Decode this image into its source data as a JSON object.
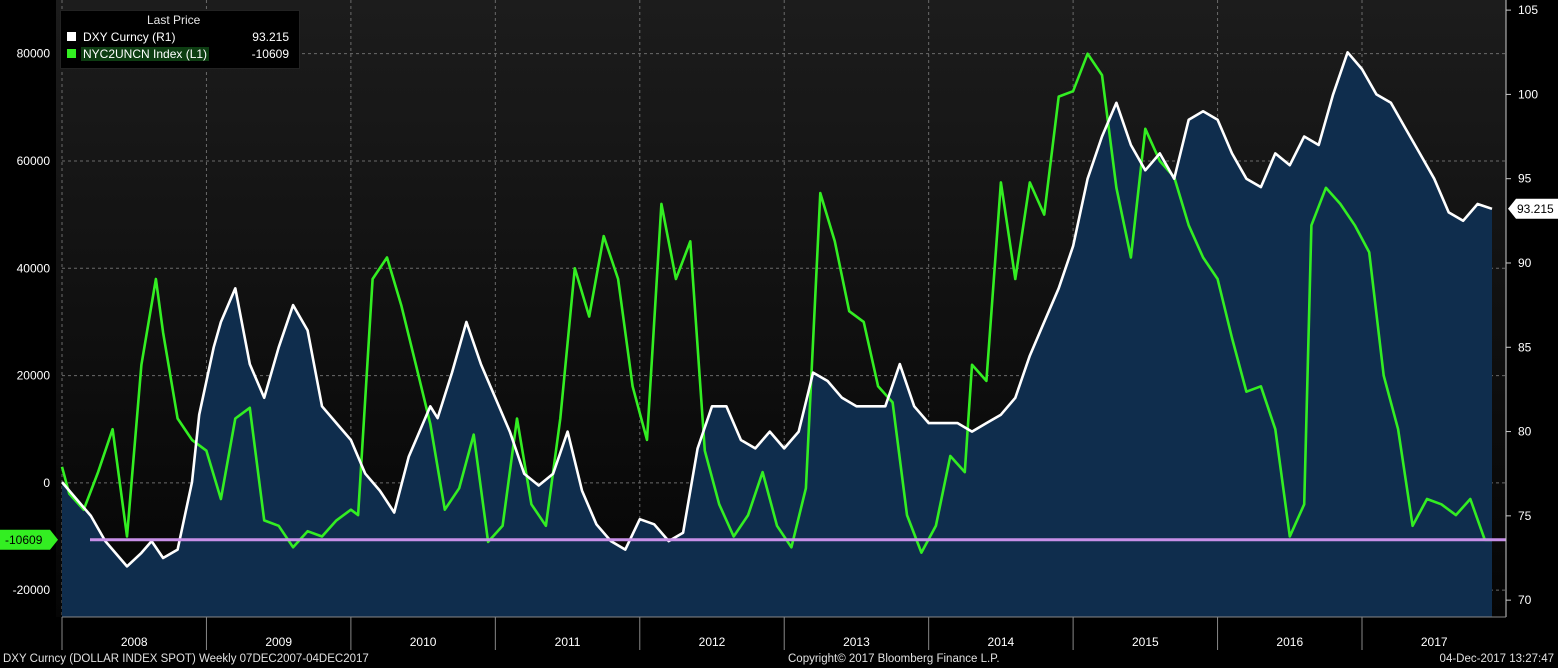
{
  "legend": {
    "title": "Last Price",
    "items": [
      {
        "name": "DXY Curncy  (R1)",
        "value": "93.215",
        "color": "#ffffff"
      },
      {
        "name": "NYC2UNCN Index  (L1)",
        "value": "-10609",
        "color": "#33ee22"
      }
    ]
  },
  "footer": {
    "left": "DXY Curncy (DOLLAR INDEX SPOT)  Weekly 07DEC2007-04DEC2017",
    "center": "Copyright© 2017 Bloomberg Finance L.P.",
    "right": "04-Dec-2017 13:27:47"
  },
  "colors": {
    "background": "#000000",
    "plot_top": "#1e1e1e",
    "area_fill": "#0f2d4d",
    "dxy": "#ffffff",
    "nyc": "#33ee22",
    "hline": "#c890e8",
    "nyc_label_bg": "#33ee22"
  },
  "chart_data": {
    "type": "line",
    "x_unit": "year",
    "xlim": [
      2008.0,
      2017.9
    ],
    "x_tick_labels": [
      "2008",
      "2009",
      "2010",
      "2011",
      "2012",
      "2013",
      "2014",
      "2015",
      "2016",
      "2017"
    ],
    "left_axis": {
      "ylim": [
        -25000,
        90000
      ],
      "ticks": [
        -20000,
        0,
        20000,
        40000,
        60000,
        80000
      ],
      "tick_labels": [
        "-20000",
        "0",
        "20000",
        "40000",
        "60000",
        "80000"
      ]
    },
    "right_axis": {
      "ylim": [
        69,
        105.6
      ],
      "ticks": [
        70,
        75,
        80,
        85,
        90,
        95,
        100,
        105
      ],
      "tick_labels": [
        "70",
        "75",
        "80",
        "85",
        "90",
        "95",
        "100",
        "105"
      ]
    },
    "last_values": {
      "dxy": "93.215",
      "nyc": "-10609"
    },
    "hline_value": -10609,
    "series": [
      {
        "name": "DXY Curncy  (R1)",
        "axis": "right",
        "fill": true,
        "x": [
          2008.0,
          2008.1,
          2008.2,
          2008.3,
          2008.45,
          2008.55,
          2008.62,
          2008.7,
          2008.8,
          2008.9,
          2008.95,
          2009.05,
          2009.1,
          2009.2,
          2009.3,
          2009.4,
          2009.5,
          2009.6,
          2009.7,
          2009.8,
          2009.9,
          2010.0,
          2010.1,
          2010.2,
          2010.3,
          2010.4,
          2010.45,
          2010.55,
          2010.6,
          2010.7,
          2010.8,
          2010.9,
          2011.0,
          2011.1,
          2011.2,
          2011.3,
          2011.4,
          2011.5,
          2011.6,
          2011.7,
          2011.8,
          2011.9,
          2012.0,
          2012.1,
          2012.2,
          2012.3,
          2012.4,
          2012.5,
          2012.6,
          2012.7,
          2012.8,
          2012.9,
          2013.0,
          2013.1,
          2013.2,
          2013.3,
          2013.4,
          2013.5,
          2013.6,
          2013.7,
          2013.8,
          2013.9,
          2014.0,
          2014.1,
          2014.2,
          2014.3,
          2014.4,
          2014.5,
          2014.6,
          2014.7,
          2014.8,
          2014.9,
          2015.0,
          2015.1,
          2015.2,
          2015.3,
          2015.4,
          2015.5,
          2015.6,
          2015.7,
          2015.8,
          2015.9,
          2016.0,
          2016.1,
          2016.2,
          2016.3,
          2016.4,
          2016.5,
          2016.6,
          2016.7,
          2016.8,
          2016.9,
          2017.0,
          2017.1,
          2017.2,
          2017.3,
          2017.4,
          2017.5,
          2017.6,
          2017.7,
          2017.8,
          2017.9
        ],
        "values": [
          77.0,
          76.0,
          75.0,
          73.5,
          72.0,
          72.8,
          73.5,
          72.5,
          73.0,
          77.0,
          81.0,
          85.0,
          86.5,
          88.5,
          84.0,
          82.0,
          85.0,
          87.5,
          86.0,
          81.5,
          80.5,
          79.5,
          77.5,
          76.5,
          75.2,
          78.5,
          79.5,
          81.5,
          80.8,
          83.5,
          86.5,
          84.0,
          82.0,
          80.0,
          77.5,
          76.8,
          77.5,
          80.0,
          76.5,
          74.5,
          73.5,
          73.0,
          74.8,
          74.5,
          73.5,
          74.0,
          79.0,
          81.5,
          81.5,
          79.5,
          79.0,
          80.0,
          79.0,
          80.0,
          83.5,
          83.0,
          82.0,
          81.5,
          81.5,
          81.5,
          84.0,
          81.5,
          80.5,
          80.5,
          80.5,
          80.0,
          80.5,
          81.0,
          82.0,
          84.5,
          86.5,
          88.5,
          91.0,
          95.0,
          97.5,
          99.5,
          97.0,
          95.5,
          96.5,
          95.0,
          98.5,
          99.0,
          98.5,
          96.5,
          95.0,
          94.5,
          96.5,
          95.8,
          97.5,
          97.0,
          100.0,
          102.5,
          101.5,
          100.0,
          99.5,
          98.0,
          96.5,
          95.0,
          93.0,
          92.5,
          93.5,
          93.215
        ]
      },
      {
        "name": "NYC2UNCN Index  (L1)",
        "axis": "left",
        "fill": false,
        "x": [
          2008.0,
          2008.05,
          2008.15,
          2008.25,
          2008.35,
          2008.45,
          2008.55,
          2008.65,
          2008.7,
          2008.8,
          2008.9,
          2009.0,
          2009.1,
          2009.2,
          2009.3,
          2009.4,
          2009.5,
          2009.6,
          2009.7,
          2009.8,
          2009.9,
          2010.0,
          2010.05,
          2010.15,
          2010.25,
          2010.35,
          2010.45,
          2010.55,
          2010.65,
          2010.75,
          2010.85,
          2010.95,
          2011.05,
          2011.15,
          2011.25,
          2011.35,
          2011.45,
          2011.55,
          2011.65,
          2011.75,
          2011.85,
          2011.95,
          2012.05,
          2012.15,
          2012.25,
          2012.35,
          2012.45,
          2012.55,
          2012.65,
          2012.75,
          2012.85,
          2012.95,
          2013.05,
          2013.15,
          2013.25,
          2013.35,
          2013.45,
          2013.55,
          2013.65,
          2013.75,
          2013.85,
          2013.95,
          2014.05,
          2014.15,
          2014.25,
          2014.3,
          2014.4,
          2014.5,
          2014.6,
          2014.7,
          2014.8,
          2014.9,
          2015.0,
          2015.1,
          2015.2,
          2015.3,
          2015.4,
          2015.5,
          2015.6,
          2015.7,
          2015.8,
          2015.9,
          2016.0,
          2016.1,
          2016.2,
          2016.3,
          2016.4,
          2016.5,
          2016.6,
          2016.65,
          2016.75,
          2016.85,
          2016.95,
          2017.05,
          2017.15,
          2017.25,
          2017.35,
          2017.45,
          2017.55,
          2017.65,
          2017.75,
          2017.85,
          2017.9
        ],
        "values": [
          3000,
          -2000,
          -5000,
          2000,
          10000,
          -10000,
          22000,
          38000,
          28000,
          12000,
          8000,
          6000,
          -3000,
          12000,
          14000,
          -7000,
          -8000,
          -12000,
          -9000,
          -10000,
          -7000,
          -5000,
          -6000,
          38000,
          42000,
          33000,
          22000,
          11000,
          -5000,
          -1000,
          9000,
          -11000,
          -8000,
          12000,
          -4000,
          -8000,
          12000,
          40000,
          31000,
          46000,
          38000,
          18000,
          8000,
          52000,
          38000,
          45000,
          6000,
          -4000,
          -10000,
          -6000,
          2000,
          -8000,
          -12000,
          -1000,
          54000,
          45000,
          32000,
          30000,
          18000,
          15000,
          -6000,
          -13000,
          -8000,
          5000,
          2000,
          22000,
          19000,
          56000,
          38000,
          56000,
          50000,
          72000,
          73000,
          80000,
          76000,
          55000,
          42000,
          66000,
          60000,
          57000,
          48000,
          42000,
          38000,
          27000,
          17000,
          18000,
          10000,
          -10000,
          -4000,
          48000,
          55000,
          52000,
          48000,
          43000,
          20000,
          10000,
          -8000,
          -3000,
          -4000,
          -6000,
          -3000,
          -10609,
          -10609
        ]
      }
    ]
  }
}
